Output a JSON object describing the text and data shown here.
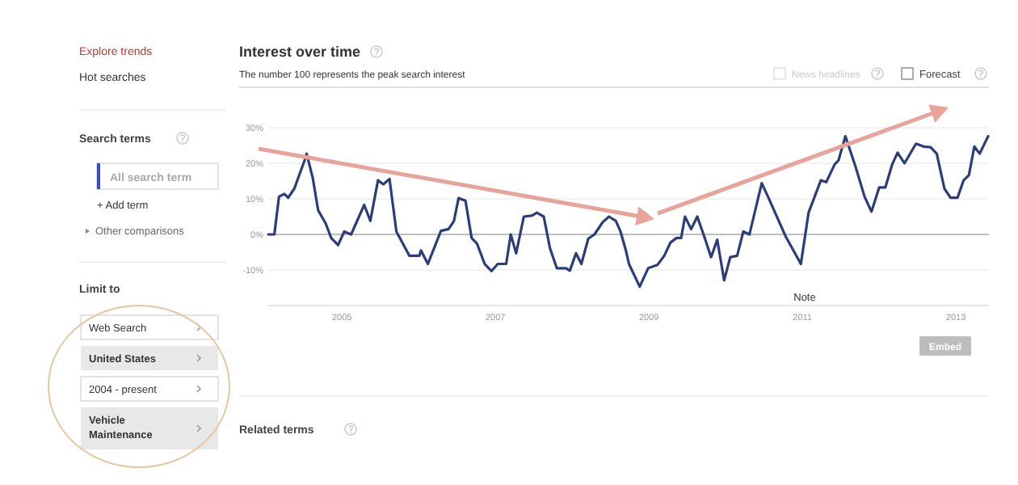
{
  "chart_data": {
    "type": "line",
    "title": "Interest over time",
    "subtitle": "The number 100 represents the peak search interest",
    "annotations": [
      "Explore trends",
      "Hot searches",
      "Search terms",
      "All search term",
      "+ Add term",
      "Other comparisons",
      "Limit to",
      "Web Search",
      "United States",
      "2004 - present",
      "Vehicle Maintenance",
      "News headlines",
      "Forecast",
      "Note",
      "Embed",
      "Related terms"
    ],
    "xlim": [
      2004.04,
      2013.43
    ],
    "xticks": [
      2005,
      2007,
      2009,
      2011,
      2013
    ],
    "ylim": [
      -20,
      30
    ],
    "yticks": [
      {
        "value": -10,
        "label": "-10%"
      },
      {
        "value": 0,
        "label": "0%"
      },
      {
        "value": 10,
        "label": "10%"
      },
      {
        "value": 20,
        "label": "20%"
      },
      {
        "value": 30,
        "label": "30%"
      }
    ],
    "grid": "y",
    "marker": "none",
    "line_style": "solid",
    "series": [
      {
        "color": "#2c3e7a",
        "x": [
          2004.04,
          2004.12,
          2004.18,
          2004.25,
          2004.3,
          2004.38,
          2004.52,
          2004.54,
          2004.62,
          2004.69,
          2004.79,
          2004.86,
          2004.95,
          2005.03,
          2005.12,
          2005.29,
          2005.37,
          2005.47,
          2005.54,
          2005.62,
          2005.71,
          2005.88,
          2006.01,
          2006.03,
          2006.12,
          2006.29,
          2006.39,
          2006.46,
          2006.52,
          2006.61,
          2006.69,
          2006.76,
          2006.86,
          2006.95,
          2007.03,
          2007.14,
          2007.2,
          2007.27,
          2007.37,
          2007.48,
          2007.54,
          2007.63,
          2007.71,
          2007.8,
          2007.92,
          2007.97,
          2008.05,
          2008.12,
          2008.21,
          2008.29,
          2008.4,
          2008.48,
          2008.57,
          2008.63,
          2008.7,
          2008.74,
          2008.88,
          2008.99,
          2009.11,
          2009.2,
          2009.28,
          2009.36,
          2009.42,
          2009.47,
          2009.55,
          2009.63,
          2009.72,
          2009.81,
          2009.89,
          2009.98,
          2010.06,
          2010.15,
          2010.23,
          2010.31,
          2010.47,
          2010.56,
          2010.78,
          2010.98,
          2011.08,
          2011.24,
          2011.31,
          2011.42,
          2011.47,
          2011.56,
          2011.69,
          2011.81,
          2011.9,
          2012.0,
          2012.08,
          2012.17,
          2012.24,
          2012.33,
          2012.48,
          2012.58,
          2012.67,
          2012.75,
          2012.85,
          2012.93,
          2013.02,
          2013.1,
          2013.17,
          2013.24,
          2013.31,
          2013.42
        ],
        "values": [
          0,
          0,
          10.6,
          11.4,
          10.3,
          12.9,
          21.2,
          22.7,
          15.9,
          6.8,
          3,
          -1,
          -3,
          0.8,
          0,
          8.3,
          3.8,
          15.2,
          14.1,
          15.6,
          0.8,
          -6,
          -6,
          -4.5,
          -8.3,
          1,
          1.5,
          3.8,
          10.2,
          9.5,
          -1,
          -2.6,
          -8.3,
          -10.3,
          -8.3,
          -8.3,
          0,
          -5.3,
          5,
          5.3,
          6.1,
          5,
          -3.8,
          -9.5,
          -9.5,
          -10.2,
          -5.3,
          -8.3,
          -1.2,
          0,
          3.5,
          5,
          3.8,
          0.8,
          -4.5,
          -8.3,
          -14.7,
          -9.5,
          -8.6,
          -6,
          -2.3,
          -1,
          -1,
          5,
          1.5,
          5,
          -0.5,
          -6.4,
          -1.5,
          -12.9,
          -6.4,
          -6,
          0.8,
          0,
          14.4,
          10.2,
          -0.5,
          -8.3,
          6.1,
          15.2,
          14.7,
          19.7,
          20.8,
          27.6,
          19.2,
          10.6,
          6.4,
          13.2,
          13.2,
          19.7,
          23,
          20,
          25.5,
          24.7,
          24.5,
          22.7,
          12.9,
          10.3,
          10.3,
          15.2,
          16.7,
          24.7,
          22.7,
          27.6
        ]
      }
    ]
  }
}
